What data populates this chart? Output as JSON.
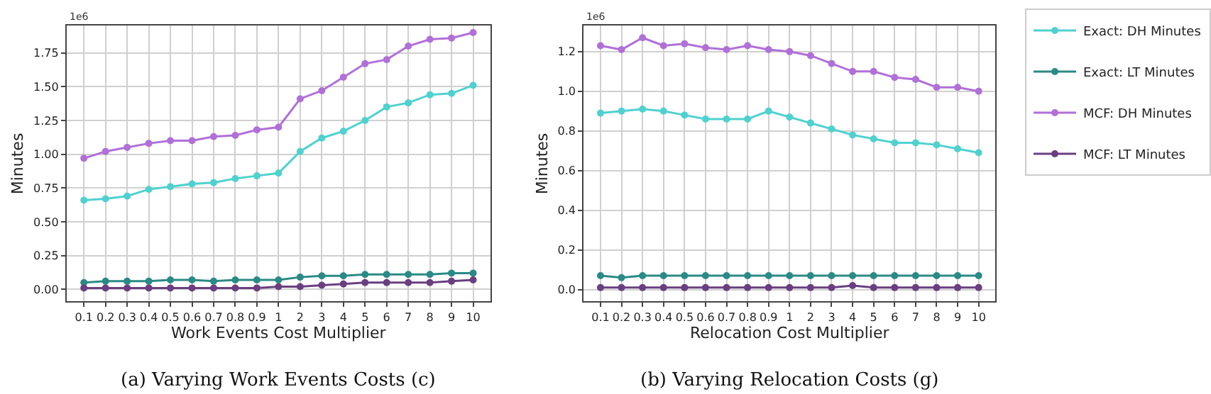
{
  "chart_data": [
    {
      "type": "line",
      "xlabel": "Work Events Cost Multiplier",
      "ylabel": "Minutes",
      "annotations": [
        "1e6",
        "(a) Varying Work Events Costs (c)"
      ],
      "categories": [
        "0.1",
        "0.2",
        "0.3",
        "0.4",
        "0.5",
        "0.6",
        "0.7",
        "0.8",
        "0.9",
        "1",
        "2",
        "3",
        "4",
        "5",
        "6",
        "7",
        "8",
        "9",
        "10"
      ],
      "ylim": [
        -0.09,
        1.95
      ],
      "yticks": [
        {
          "value": 0,
          "label": "0.00"
        },
        {
          "value": 0.25,
          "label": "0.25"
        },
        {
          "value": 0.5,
          "label": "0.50"
        },
        {
          "value": 0.75,
          "label": "0.75"
        },
        {
          "value": 1,
          "label": "1.00"
        },
        {
          "value": 1.25,
          "label": "1.25"
        },
        {
          "value": 1.5,
          "label": "1.50"
        },
        {
          "value": 1.75,
          "label": "1.75"
        }
      ],
      "grid": true,
      "marker": "circle",
      "line_style": "solid",
      "series": [
        {
          "color": "#4fd1cf",
          "values": [
            0.66,
            0.67,
            0.69,
            0.74,
            0.76,
            0.78,
            0.79,
            0.82,
            0.84,
            0.86,
            1.02,
            1.12,
            1.17,
            1.25,
            1.35,
            1.38,
            1.44,
            1.45,
            1.51
          ]
        },
        {
          "color": "#2a8a85",
          "values": [
            0.05,
            0.06,
            0.06,
            0.06,
            0.07,
            0.07,
            0.06,
            0.07,
            0.07,
            0.07,
            0.09,
            0.1,
            0.1,
            0.11,
            0.11,
            0.11,
            0.11,
            0.12,
            0.12
          ]
        },
        {
          "color": "#b070d8",
          "values": [
            0.97,
            1.02,
            1.05,
            1.08,
            1.1,
            1.1,
            1.13,
            1.14,
            1.18,
            1.2,
            1.41,
            1.47,
            1.57,
            1.67,
            1.7,
            1.8,
            1.85,
            1.86,
            1.9
          ]
        },
        {
          "color": "#6a3f80",
          "values": [
            0.01,
            0.01,
            0.01,
            0.01,
            0.01,
            0.01,
            0.01,
            0.01,
            0.01,
            0.02,
            0.02,
            0.03,
            0.04,
            0.05,
            0.05,
            0.05,
            0.05,
            0.06,
            0.07
          ]
        }
      ]
    },
    {
      "type": "line",
      "xlabel": "Relocation Cost Multiplier",
      "ylabel": "Minutes",
      "annotations": [
        "1e6",
        "(b) Varying Relocation Costs (g)"
      ],
      "categories": [
        "0.1",
        "0.2",
        "0.3",
        "0.4",
        "0.5",
        "0.6",
        "0.7",
        "0.8",
        "0.9",
        "1",
        "2",
        "3",
        "4",
        "5",
        "6",
        "7",
        "8",
        "9",
        "10"
      ],
      "ylim": [
        -0.06,
        1.33
      ],
      "yticks": [
        {
          "value": 0,
          "label": "0.0"
        },
        {
          "value": 0.2,
          "label": "0.2"
        },
        {
          "value": 0.4,
          "label": "0.4"
        },
        {
          "value": 0.6,
          "label": "0.6"
        },
        {
          "value": 0.8,
          "label": "0.8"
        },
        {
          "value": 1,
          "label": "1.0"
        },
        {
          "value": 1.2,
          "label": "1.2"
        }
      ],
      "grid": true,
      "marker": "circle",
      "line_style": "solid",
      "legend": "right",
      "series": [
        {
          "name": "Exact: DH Minutes",
          "color": "#4fd1cf",
          "values": [
            0.89,
            0.9,
            0.91,
            0.9,
            0.88,
            0.86,
            0.86,
            0.86,
            0.9,
            0.87,
            0.84,
            0.81,
            0.78,
            0.76,
            0.74,
            0.74,
            0.73,
            0.71,
            0.69
          ]
        },
        {
          "name": "Exact: LT Minutes",
          "color": "#2a8a85",
          "values": [
            0.07,
            0.06,
            0.07,
            0.07,
            0.07,
            0.07,
            0.07,
            0.07,
            0.07,
            0.07,
            0.07,
            0.07,
            0.07,
            0.07,
            0.07,
            0.07,
            0.07,
            0.07,
            0.07
          ]
        },
        {
          "name": "MCF: DH Minutes",
          "color": "#b070d8",
          "values": [
            1.23,
            1.21,
            1.27,
            1.23,
            1.24,
            1.22,
            1.21,
            1.23,
            1.21,
            1.2,
            1.18,
            1.14,
            1.1,
            1.1,
            1.07,
            1.06,
            1.02,
            1.02,
            1.0
          ]
        },
        {
          "name": "MCF: LT Minutes",
          "color": "#6a3f80",
          "values": [
            0.01,
            0.01,
            0.01,
            0.01,
            0.01,
            0.01,
            0.01,
            0.01,
            0.01,
            0.01,
            0.01,
            0.01,
            0.02,
            0.01,
            0.01,
            0.01,
            0.01,
            0.01,
            0.01
          ]
        }
      ]
    }
  ]
}
